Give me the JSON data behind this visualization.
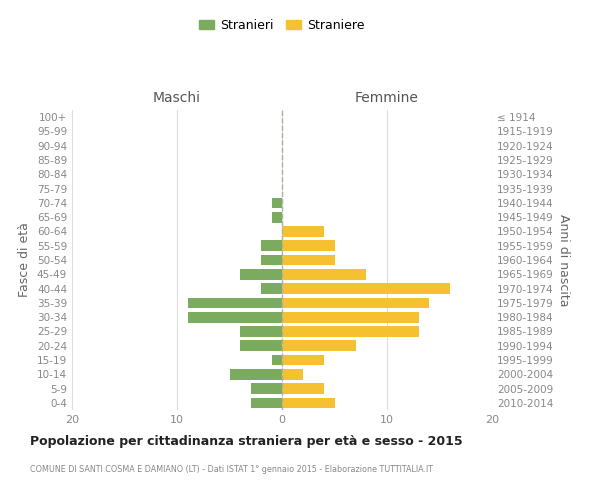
{
  "age_groups": [
    "0-4",
    "5-9",
    "10-14",
    "15-19",
    "20-24",
    "25-29",
    "30-34",
    "35-39",
    "40-44",
    "45-49",
    "50-54",
    "55-59",
    "60-64",
    "65-69",
    "70-74",
    "75-79",
    "80-84",
    "85-89",
    "90-94",
    "95-99",
    "100+"
  ],
  "birth_years": [
    "2010-2014",
    "2005-2009",
    "2000-2004",
    "1995-1999",
    "1990-1994",
    "1985-1989",
    "1980-1984",
    "1975-1979",
    "1970-1974",
    "1965-1969",
    "1960-1964",
    "1955-1959",
    "1950-1954",
    "1945-1949",
    "1940-1944",
    "1935-1939",
    "1930-1934",
    "1925-1929",
    "1920-1924",
    "1915-1919",
    "≤ 1914"
  ],
  "maschi": [
    3,
    3,
    5,
    1,
    4,
    4,
    9,
    9,
    2,
    4,
    2,
    2,
    0,
    1,
    1,
    0,
    0,
    0,
    0,
    0,
    0
  ],
  "femmine": [
    5,
    4,
    2,
    4,
    7,
    13,
    13,
    14,
    16,
    8,
    5,
    5,
    4,
    0,
    0,
    0,
    0,
    0,
    0,
    0,
    0
  ],
  "color_maschi": "#7aab5e",
  "color_femmine": "#f5c131",
  "grid_color": "#dddddd",
  "xlim": 20,
  "title": "Popolazione per cittadinanza straniera per età e sesso - 2015",
  "subtitle": "COMUNE DI SANTI COSMA E DAMIANO (LT) - Dati ISTAT 1° gennaio 2015 - Elaborazione TUTTITALIA.IT",
  "ylabel_left": "Fasce di età",
  "ylabel_right": "Anni di nascita",
  "legend_maschi": "Stranieri",
  "legend_femmine": "Straniere",
  "header_maschi": "Maschi",
  "header_femmine": "Femmine",
  "dashed_line_color": "#b0b0a0"
}
